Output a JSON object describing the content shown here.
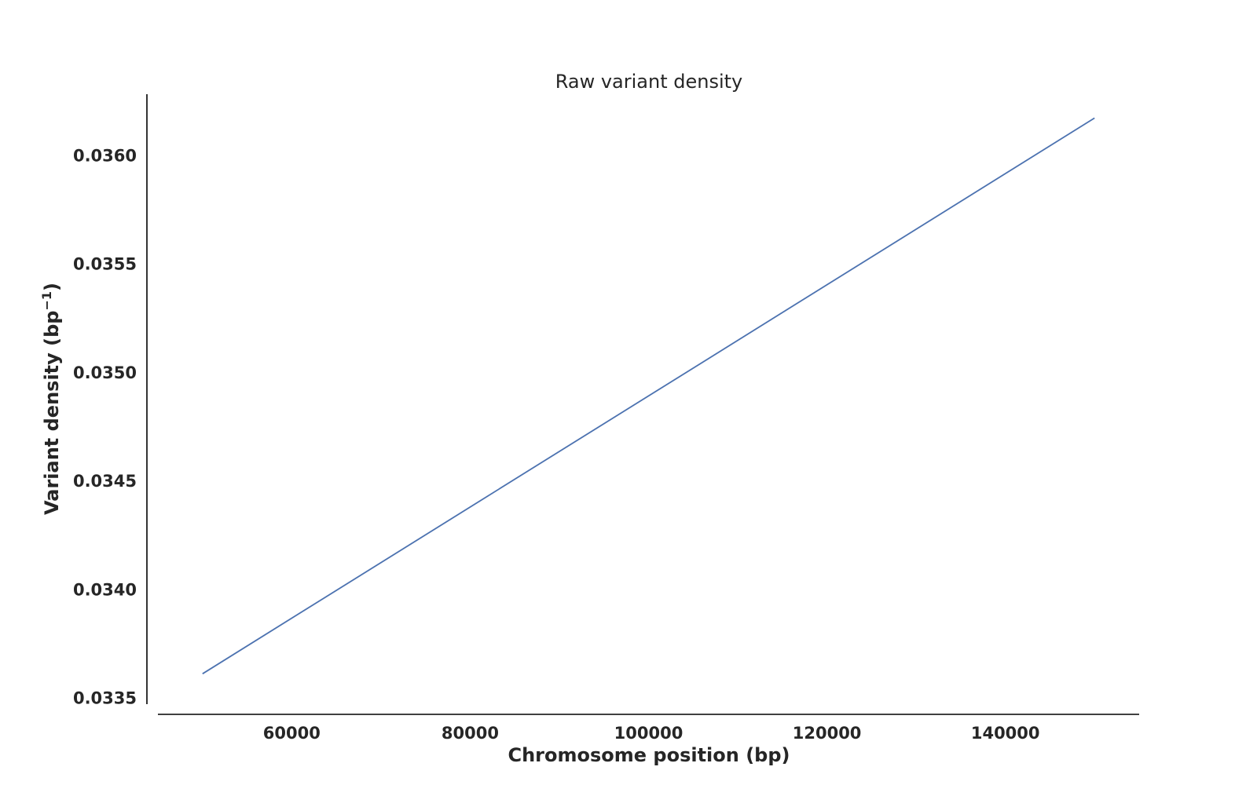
{
  "chart_data": {
    "type": "line",
    "title": "Raw variant density",
    "xlabel": "Chromosome position (bp)",
    "ylabel_main": "Variant density (bp",
    "ylabel_sup": "−1",
    "ylabel_tail": ")",
    "xlim": [
      45000,
      155000
    ],
    "ylim": [
      0.03347,
      0.03628
    ],
    "x_ticks": [
      60000,
      80000,
      100000,
      120000,
      140000
    ],
    "x_tick_labels": [
      "60000",
      "80000",
      "100000",
      "120000",
      "140000"
    ],
    "y_ticks": [
      0.0335,
      0.034,
      0.0345,
      0.035,
      0.0355,
      0.036
    ],
    "y_tick_labels": [
      "0.0335",
      "0.0340",
      "0.0345",
      "0.0350",
      "0.0355",
      "0.0360"
    ],
    "grid": false,
    "series": [
      {
        "color": "#4c72b0",
        "x": [
          50000,
          150000
        ],
        "y": [
          0.03361,
          0.03617
        ]
      }
    ]
  }
}
